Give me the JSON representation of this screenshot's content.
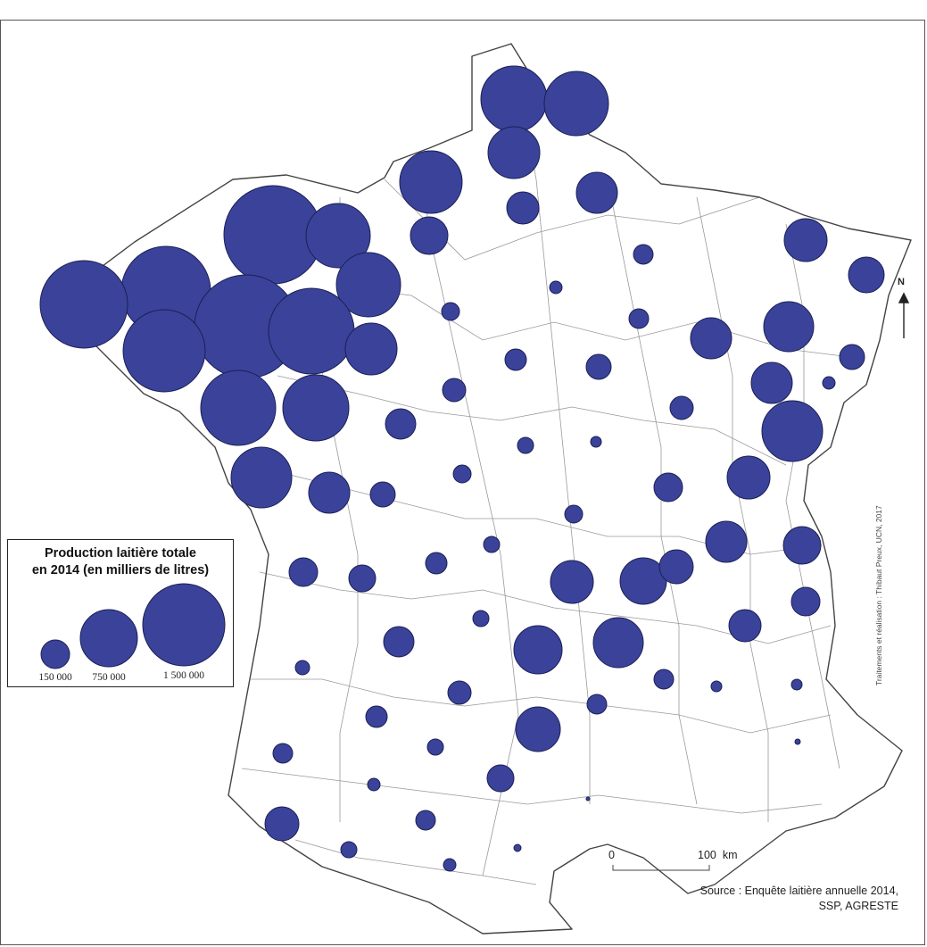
{
  "legend": {
    "title_line1": "Production laitière totale",
    "title_line2": "en 2014 (en milliers de litres)",
    "sizes": [
      {
        "label": "150 000",
        "value": 150000
      },
      {
        "label": "750 000",
        "value": 750000
      },
      {
        "label": "1 500 000",
        "value": 1500000
      }
    ]
  },
  "credit": "Traitements et réalisation : Thibaut Preux, UCN, 2017",
  "source": {
    "line1": "Source :  Enquête laitière annuelle 2014,",
    "line2": "SSP, AGRESTE"
  },
  "scale": {
    "zero": "0",
    "max": "100",
    "unit": "km"
  },
  "north": "N",
  "colors": {
    "bubble": "#3a4399",
    "bubble_stroke": "#1b1f55",
    "department_stroke": "#9a9a9a",
    "background": "#ffffff"
  },
  "symbol": "proportional-circle"
}
